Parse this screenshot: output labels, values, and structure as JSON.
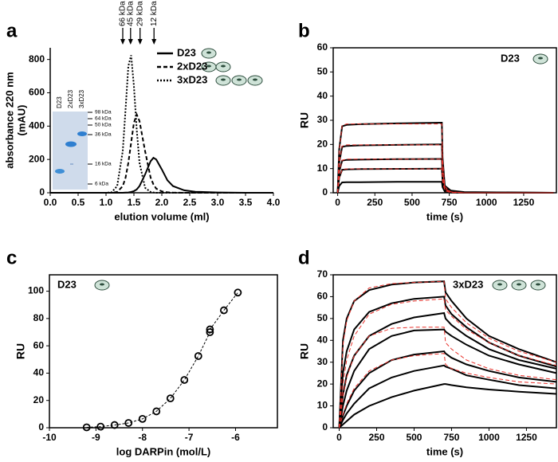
{
  "chart_data": [
    {
      "type": "line",
      "panel": "a",
      "xlabel": "elution volume (ml)",
      "ylabel": [
        "absorbance 220 nm",
        "(mAU)"
      ],
      "x": [
        0,
        0.5,
        1.0,
        1.1,
        1.2,
        1.3,
        1.35,
        1.4,
        1.45,
        1.5,
        1.55,
        1.6,
        1.7,
        1.8,
        1.85,
        1.9,
        2.0,
        2.1,
        2.2,
        2.4,
        2.6,
        3.0,
        3.5,
        4.0
      ],
      "series": [
        {
          "name": "D23",
          "color": "#000000",
          "dash": "solid",
          "values": [
            0,
            0,
            0,
            0,
            0,
            0,
            1,
            2,
            5,
            10,
            20,
            40,
            110,
            190,
            210,
            200,
            140,
            75,
            40,
            15,
            6,
            2,
            0,
            0
          ]
        },
        {
          "name": "2xD23",
          "color": "#000000",
          "dash": "dashed",
          "values": [
            0,
            0,
            0,
            0,
            5,
            40,
            90,
            180,
            300,
            420,
            470,
            430,
            250,
            90,
            50,
            25,
            8,
            3,
            1,
            0,
            0,
            0,
            0,
            0
          ]
        },
        {
          "name": "3xD23",
          "color": "#000000",
          "dash": "dotted",
          "values": [
            0,
            0,
            0,
            3,
            40,
            250,
            500,
            760,
            825,
            640,
            380,
            180,
            30,
            5,
            2,
            0,
            0,
            0,
            0,
            0,
            0,
            0,
            0,
            0
          ]
        }
      ],
      "xlim": [
        0,
        4.0
      ],
      "ylim": [
        0,
        870
      ],
      "xticks": [
        {
          "value": 0,
          "label": "0.0"
        },
        {
          "value": 0.5,
          "label": "0.5"
        },
        {
          "value": 1,
          "label": "1.0"
        },
        {
          "value": 1.5,
          "label": "1.5"
        },
        {
          "value": 2,
          "label": "2.0"
        },
        {
          "value": 2.5,
          "label": "2.5"
        },
        {
          "value": 3,
          "label": "3.0"
        },
        {
          "value": 3.5,
          "label": "3.5"
        },
        {
          "value": 4,
          "label": "4.0"
        }
      ],
      "yticks": [
        0,
        200,
        400,
        600,
        800
      ],
      "annotations": [
        {
          "text": "66 kDa",
          "x": 1.3
        },
        {
          "text": "45 kDa",
          "x": 1.44
        },
        {
          "text": "29 kDa",
          "x": 1.61
        },
        {
          "text": "12 kDa",
          "x": 1.86
        }
      ],
      "inset": {
        "lanes": [
          "D23",
          "2xD23",
          "3xD23"
        ],
        "markers": [
          "98 kDa",
          "64 kDa",
          "50 kDa",
          "36 kDa",
          "16 kDa",
          "6 kDa"
        ]
      }
    },
    {
      "type": "line",
      "panel": "b",
      "label": "D23",
      "xlabel": "time (s)",
      "ylabel": "RU",
      "x": [
        0,
        10,
        30,
        60,
        150,
        400,
        700,
        705,
        720,
        760,
        850,
        1000,
        1250,
        1450
      ],
      "series": [
        {
          "color": "#000000",
          "dash": "solid",
          "values": [
            0,
            18,
            27.5,
            28.1,
            28.4,
            28.7,
            29,
            14.5,
            2.9,
            0.9,
            0.3,
            0.2,
            0.1,
            0
          ]
        },
        {
          "color": "#000000",
          "dash": "solid",
          "values": [
            0,
            12.4,
            19,
            19.4,
            19.6,
            19.8,
            20,
            10,
            2,
            0.6,
            0.2,
            0.1,
            0.1,
            0
          ]
        },
        {
          "color": "#000000",
          "dash": "solid",
          "values": [
            0,
            8.7,
            13.3,
            13.6,
            13.7,
            13.9,
            14,
            7,
            1.4,
            0.4,
            0.1,
            0.1,
            0,
            0
          ]
        },
        {
          "color": "#000000",
          "dash": "solid",
          "values": [
            0,
            6.2,
            9.5,
            9.7,
            9.8,
            9.9,
            10,
            5,
            1,
            0.3,
            0.1,
            0,
            0,
            0
          ]
        },
        {
          "color": "#000000",
          "dash": "solid",
          "values": [
            0,
            2.8,
            4.3,
            4.4,
            4.4,
            4.5,
            4.5,
            2.3,
            0.5,
            0.1,
            0,
            0,
            0,
            0
          ]
        },
        {
          "color": "#e8302a",
          "dash": "dashed",
          "values": [
            0,
            17.5,
            27.8,
            28.5,
            28.5,
            28.5,
            28.5,
            14,
            2.5,
            0.4,
            0,
            0,
            0,
            0
          ]
        },
        {
          "color": "#e8302a",
          "dash": "dashed",
          "values": [
            0,
            12,
            19.3,
            19.8,
            19.8,
            19.8,
            19.8,
            9.8,
            1.8,
            0.3,
            0,
            0,
            0,
            0
          ]
        },
        {
          "color": "#e8302a",
          "dash": "dashed",
          "values": [
            0,
            8.5,
            13.5,
            13.9,
            13.9,
            13.9,
            13.9,
            6.9,
            1.2,
            0.2,
            0,
            0,
            0,
            0
          ]
        },
        {
          "color": "#e8302a",
          "dash": "dashed",
          "values": [
            0,
            6,
            9.6,
            9.9,
            9.9,
            9.9,
            9.9,
            4.9,
            0.9,
            0.1,
            0,
            0,
            0,
            0
          ]
        }
      ],
      "xlim": [
        -30,
        1470
      ],
      "ylim": [
        0,
        60
      ],
      "xticks": [
        0,
        250,
        500,
        750,
        1000,
        1250
      ],
      "yticks": [
        0,
        10,
        20,
        30,
        40,
        50,
        60
      ]
    },
    {
      "type": "scatter",
      "panel": "c",
      "label": "D23",
      "xlabel": "log DARPin (mol/L)",
      "ylabel": "RU",
      "x": [
        -9.2,
        -8.9,
        -8.6,
        -8.3,
        -8.0,
        -7.7,
        -7.4,
        -7.1,
        -6.8,
        -6.55,
        -6.55,
        -6.25,
        -5.95
      ],
      "values": [
        0.3,
        0.8,
        2,
        3.5,
        6.5,
        12,
        21.5,
        35,
        52.5,
        70,
        72,
        86,
        99
      ],
      "color": "#000000",
      "xlim": [
        -10,
        -5.1
      ],
      "ylim": [
        0,
        112
      ],
      "xticks": [
        -10,
        -9,
        -8,
        -7,
        -6
      ],
      "yticks": [
        0,
        20,
        40,
        60,
        80,
        100
      ]
    },
    {
      "type": "line",
      "panel": "d",
      "label": "3xD23",
      "xlabel": "time (s)",
      "ylabel": "RU",
      "x": [
        0,
        25,
        50,
        100,
        200,
        350,
        500,
        700,
        710,
        750,
        850,
        1000,
        1200,
        1450
      ],
      "series": [
        {
          "color": "#000000",
          "dash": "solid",
          "values": [
            0,
            40,
            50,
            58,
            63,
            65.5,
            66.5,
            67,
            62,
            58,
            50,
            42,
            36,
            30
          ]
        },
        {
          "color": "#000000",
          "dash": "solid",
          "values": [
            0,
            25,
            35,
            45,
            53,
            57,
            59,
            60,
            56,
            52,
            46,
            39,
            33,
            28
          ]
        },
        {
          "color": "#000000",
          "dash": "solid",
          "values": [
            0,
            15,
            24,
            33,
            42,
            47.5,
            50.5,
            52.5,
            50,
            47,
            42,
            36,
            31,
            27
          ]
        },
        {
          "color": "#000000",
          "dash": "solid",
          "values": [
            0,
            10,
            17,
            26,
            36,
            42,
            44.5,
            45,
            44,
            42,
            38,
            33,
            29,
            25
          ]
        },
        {
          "color": "#000000",
          "dash": "solid",
          "values": [
            0,
            5.5,
            10,
            17,
            25,
            31,
            33.5,
            35,
            34,
            32,
            29,
            26,
            23,
            21
          ]
        },
        {
          "color": "#000000",
          "dash": "solid",
          "values": [
            0,
            3.5,
            6.5,
            11,
            18,
            23,
            26,
            28.5,
            28,
            27,
            24,
            22,
            19.5,
            18
          ]
        },
        {
          "color": "#000000",
          "dash": "solid",
          "values": [
            0,
            1.5,
            3,
            6,
            10,
            14,
            17,
            20,
            20,
            19.5,
            18.5,
            17.5,
            16.5,
            15.5
          ]
        },
        {
          "color": "#e8302a",
          "dash": "dashed",
          "values": [
            0,
            38,
            49,
            58,
            64,
            66,
            66.5,
            67,
            59,
            55,
            48,
            41,
            35,
            30
          ]
        },
        {
          "color": "#e8302a",
          "dash": "dashed",
          "values": [
            0,
            20,
            31,
            42,
            52,
            56.5,
            58,
            59,
            54,
            51,
            45,
            39,
            33,
            28.5
          ]
        },
        {
          "color": "#e8302a",
          "dash": "dashed",
          "values": [
            0,
            14,
            23,
            33,
            42,
            45.5,
            46,
            46,
            39,
            36,
            31,
            27,
            24,
            22
          ]
        },
        {
          "color": "#e8302a",
          "dash": "dashed",
          "values": [
            0,
            6,
            11,
            18,
            26,
            31,
            33,
            34,
            29,
            27,
            25,
            23,
            21,
            20
          ]
        }
      ],
      "xlim": [
        -40,
        1450
      ],
      "ylim": [
        0,
        70
      ],
      "xticks": [
        0,
        250,
        500,
        750,
        1000,
        1250
      ],
      "yticks": [
        0,
        10,
        20,
        30,
        40,
        50,
        60,
        70
      ]
    }
  ]
}
